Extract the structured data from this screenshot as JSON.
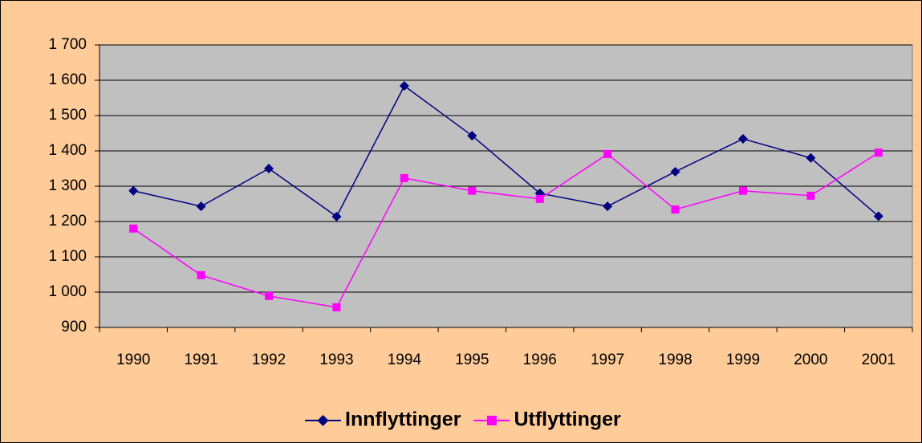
{
  "chart_data": {
    "type": "line",
    "categories": [
      "1990",
      "1991",
      "1992",
      "1993",
      "1994",
      "1995",
      "1996",
      "1997",
      "1998",
      "1999",
      "2000",
      "2001"
    ],
    "series": [
      {
        "name": "Innflyttinger",
        "color": "#000080",
        "marker": "diamond",
        "values": [
          1287,
          1243,
          1350,
          1214,
          1584,
          1443,
          1280,
          1243,
          1341,
          1434,
          1380,
          1215
        ]
      },
      {
        "name": "Utflyttinger",
        "color": "#FF00FF",
        "marker": "square",
        "values": [
          1180,
          1048,
          989,
          957,
          1323,
          1287,
          1264,
          1391,
          1234,
          1287,
          1273,
          1395
        ]
      }
    ],
    "ylim": [
      900,
      1700
    ],
    "yticks": [
      900,
      {
        "value": 1000,
        "label": "1 000"
      },
      {
        "value": 1100,
        "label": "1 100"
      },
      {
        "value": 1200,
        "label": "1 200"
      },
      {
        "value": 1300,
        "label": "1 300"
      },
      {
        "value": 1400,
        "label": "1 400"
      },
      {
        "value": 1500,
        "label": "1 500"
      },
      {
        "value": 1600,
        "label": "1 600"
      },
      {
        "value": 1700,
        "label": "1 700"
      }
    ],
    "grid": true,
    "legend": "bottom"
  }
}
